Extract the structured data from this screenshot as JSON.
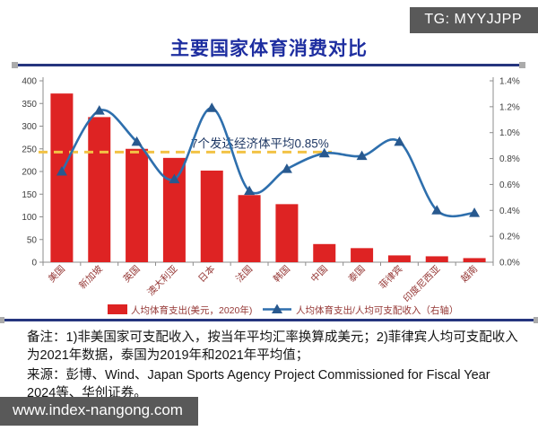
{
  "title": "主要国家体育消费对比",
  "watermarks": {
    "telegram": "TG: MYYJJPP",
    "website": "www.index-nangong.com"
  },
  "colors": {
    "bar": "#de2323",
    "line": "#2e6fad",
    "marker": "#28598f",
    "reference": "#f2c245",
    "title": "#1e2ea0",
    "divider": "#25357e",
    "axis_label": "#953735",
    "tick_label": "#3d3d3d",
    "annotation": "#1f3864",
    "axis_line": "#8c8c8c",
    "badge_bg": "#595959"
  },
  "chart_data": {
    "type": "bar",
    "subtype": "bar-line-combo",
    "grid": false,
    "legend_position": "bottom",
    "categories": [
      "美国",
      "新加坡",
      "英国",
      "澳大利亚",
      "日本",
      "法国",
      "韩国",
      "中国",
      "泰国",
      "菲律宾",
      "印度尼西亚",
      "越南"
    ],
    "series": [
      {
        "name": "人均体育支出(美元，2020年)",
        "type": "bar",
        "axis": "left",
        "values": [
          372,
          320,
          250,
          230,
          202,
          148,
          128,
          40,
          31,
          15,
          13,
          9
        ]
      },
      {
        "name": "人均体育支出/人均可支配收入（右轴）",
        "type": "line",
        "axis": "right",
        "values_percent": [
          0.7,
          1.17,
          0.93,
          0.64,
          1.19,
          0.55,
          0.72,
          0.84,
          0.82,
          0.93,
          0.4,
          0.38
        ]
      }
    ],
    "reference_line": {
      "axis": "right",
      "value_percent": 0.85,
      "label": "7个发达经济体平均0.85%",
      "style": "dashed"
    },
    "left_axis": {
      "min": 0,
      "max": 400,
      "step": 50,
      "ticks": [
        0,
        50,
        100,
        150,
        200,
        250,
        300,
        350,
        400
      ]
    },
    "right_axis": {
      "min": 0,
      "max": 1.4,
      "step": 0.2,
      "ticks": [
        "0.0%",
        "0.2%",
        "0.4%",
        "0.6%",
        "0.8%",
        "1.0%",
        "1.2%",
        "1.4%"
      ]
    }
  },
  "notes": {
    "remark": "备注：1)非美国家可支配收入，按当年平均汇率换算成美元；2)菲律宾人均可支配收入为2021年数据，泰国为2019年和2021年平均值；",
    "source": "来源：彭博、Wind、Japan Sports Agency Project Commissioned for Fiscal Year 2024等、华创证券。"
  }
}
